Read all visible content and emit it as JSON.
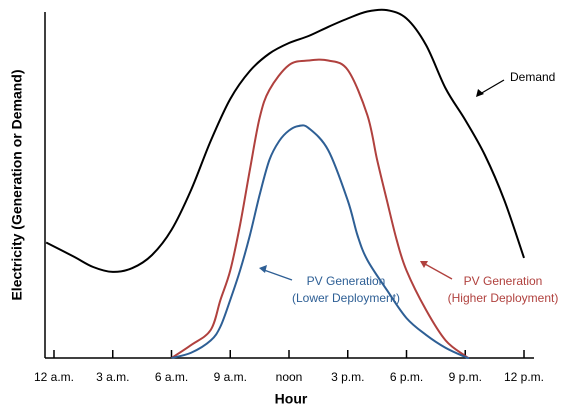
{
  "chart_data": {
    "type": "line",
    "xlabel": "Hour",
    "ylabel": "Electricity (Generation or Demand)",
    "xlim": [
      -0.5,
      24.5
    ],
    "ylim": [
      0,
      100
    ],
    "xticks": [
      {
        "value": 0,
        "label": "12 a.m."
      },
      {
        "value": 3,
        "label": "3 a.m."
      },
      {
        "value": 6,
        "label": "6 a.m."
      },
      {
        "value": 9,
        "label": "9 a.m."
      },
      {
        "value": 12,
        "label": "noon"
      },
      {
        "value": 15,
        "label": "3 p.m."
      },
      {
        "value": 18,
        "label": "6 p.m."
      },
      {
        "value": 21,
        "label": "9 p.m."
      },
      {
        "value": 24,
        "label": "12 p.m."
      }
    ],
    "series": [
      {
        "name": "Demand",
        "color": "#000000",
        "x": [
          -0.4,
          1,
          2,
          3,
          4,
          5,
          6,
          7,
          8,
          9,
          10,
          11,
          12,
          13,
          14,
          15,
          16,
          17,
          18,
          19,
          20,
          21,
          22,
          23,
          24
        ],
        "values": [
          33,
          29,
          26,
          24.6,
          25.7,
          29.4,
          36.6,
          48,
          62,
          74,
          82,
          87,
          90,
          92,
          94.6,
          97,
          99,
          99.4,
          97,
          89.4,
          77,
          68,
          58,
          45,
          28.6
        ]
      },
      {
        "name": "PV Generation (Higher Deployment)",
        "color": "#b0413e",
        "x": [
          6,
          7,
          8,
          8.5,
          9,
          9.5,
          10,
          10.5,
          11,
          12,
          13,
          14,
          15,
          16,
          16.5,
          17,
          17.5,
          18,
          19,
          20,
          21,
          21.2
        ],
        "values": [
          0,
          3.7,
          8,
          16.6,
          25,
          38,
          53.7,
          68.6,
          76.6,
          83.7,
          85,
          85,
          82.3,
          69.4,
          56.6,
          45,
          33.7,
          25,
          13.7,
          5,
          0.6,
          0
        ]
      },
      {
        "name": "PV Generation (Lower Deployment)",
        "color": "#2e5f95",
        "x": [
          6,
          7,
          8,
          8.5,
          9,
          9.5,
          10,
          10.5,
          11,
          11.5,
          12,
          12.5,
          13,
          14,
          15,
          15.5,
          16,
          17,
          18,
          19,
          20,
          21,
          21.2
        ],
        "values": [
          0,
          1.5,
          5,
          9,
          16.6,
          25,
          35,
          46.6,
          56.6,
          62,
          65,
          66.3,
          65.7,
          59.4,
          45,
          35,
          28,
          19.4,
          11.4,
          6.6,
          2.9,
          0.3,
          0
        ]
      }
    ],
    "annotations": [
      {
        "lines": [
          "Demand"
        ],
        "color": "#000000"
      },
      {
        "lines": [
          "PV Generation",
          "(Lower Deployment)"
        ],
        "color": "#2e5f95"
      },
      {
        "lines": [
          "PV Generation",
          "(Higher Deployment)"
        ],
        "color": "#b0413e"
      }
    ]
  }
}
